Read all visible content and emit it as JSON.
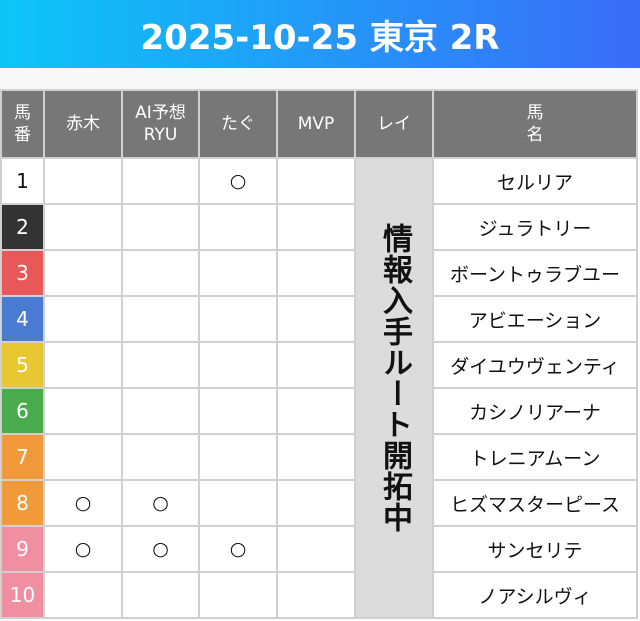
{
  "title": "2025-10-25 東京 2R",
  "headers": {
    "num": "馬\n番",
    "akagi": "赤木",
    "ai": "AI予想\nRYU",
    "tagu": "たぐ",
    "mvp": "MVP",
    "rei": "レイ",
    "name": "馬\n名"
  },
  "rei_note": "情報入手ルート開拓中",
  "mark": "○",
  "rows": [
    {
      "num": "1",
      "frame_color": "#ffffff",
      "text_color": "#111111",
      "akagi": "",
      "ai": "",
      "tagu": "○",
      "mvp": "",
      "name": "セルリア"
    },
    {
      "num": "2",
      "frame_color": "#333333",
      "text_color": "#ffffff",
      "akagi": "",
      "ai": "",
      "tagu": "",
      "mvp": "",
      "name": "ジュラトリー"
    },
    {
      "num": "3",
      "frame_color": "#e85858",
      "text_color": "#ffffff",
      "akagi": "",
      "ai": "",
      "tagu": "",
      "mvp": "",
      "name": "ボーントゥラブユー"
    },
    {
      "num": "4",
      "frame_color": "#4a7bd2",
      "text_color": "#ffffff",
      "akagi": "",
      "ai": "",
      "tagu": "",
      "mvp": "",
      "name": "アビエーション"
    },
    {
      "num": "5",
      "frame_color": "#e8c832",
      "text_color": "#ffffff",
      "akagi": "",
      "ai": "",
      "tagu": "",
      "mvp": "",
      "name": "ダイユウヴェンティ"
    },
    {
      "num": "6",
      "frame_color": "#4aab4e",
      "text_color": "#ffffff",
      "akagi": "",
      "ai": "",
      "tagu": "",
      "mvp": "",
      "name": "カシノリアーナ"
    },
    {
      "num": "7",
      "frame_color": "#f09a3a",
      "text_color": "#ffffff",
      "akagi": "",
      "ai": "",
      "tagu": "",
      "mvp": "",
      "name": "トレニアムーン"
    },
    {
      "num": "8",
      "frame_color": "#f09a3a",
      "text_color": "#ffffff",
      "akagi": "○",
      "ai": "○",
      "tagu": "",
      "mvp": "",
      "name": "ヒズマスターピース"
    },
    {
      "num": "9",
      "frame_color": "#f08ea2",
      "text_color": "#ffffff",
      "akagi": "○",
      "ai": "○",
      "tagu": "○",
      "mvp": "",
      "name": "サンセリテ"
    },
    {
      "num": "10",
      "frame_color": "#f08ea2",
      "text_color": "#ffffff",
      "akagi": "",
      "ai": "",
      "tagu": "",
      "mvp": "",
      "name": "ノアシルヴィ"
    }
  ]
}
